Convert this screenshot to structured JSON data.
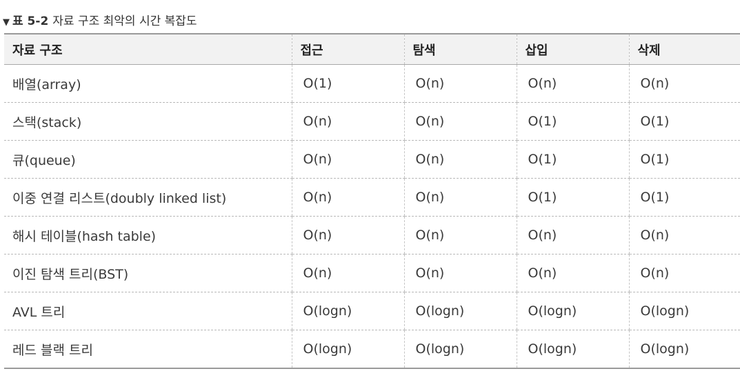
{
  "caption": {
    "marker": "▼",
    "number": "표 5-2",
    "title": "자료 구조 최악의 시간 복잡도"
  },
  "table": {
    "headers": [
      "자료 구조",
      "접근",
      "탐색",
      "삽입",
      "삭제"
    ],
    "rows": [
      [
        "배열(array)",
        "O(1)",
        "O(n)",
        "O(n)",
        "O(n)"
      ],
      [
        "스택(stack)",
        "O(n)",
        "O(n)",
        "O(1)",
        "O(1)"
      ],
      [
        "큐(queue)",
        "O(n)",
        "O(n)",
        "O(1)",
        "O(1)"
      ],
      [
        "이중 연결 리스트(doubly linked list)",
        "O(n)",
        "O(n)",
        "O(1)",
        "O(1)"
      ],
      [
        "해시 테이블(hash table)",
        "O(n)",
        "O(n)",
        "O(n)",
        "O(n)"
      ],
      [
        "이진 탐색 트리(BST)",
        "O(n)",
        "O(n)",
        "O(n)",
        "O(n)"
      ],
      [
        "AVL 트리",
        "O(logn)",
        "O(logn)",
        "O(logn)",
        "O(logn)"
      ],
      [
        "레드 블랙 트리",
        "O(logn)",
        "O(logn)",
        "O(logn)",
        "O(logn)"
      ]
    ]
  }
}
